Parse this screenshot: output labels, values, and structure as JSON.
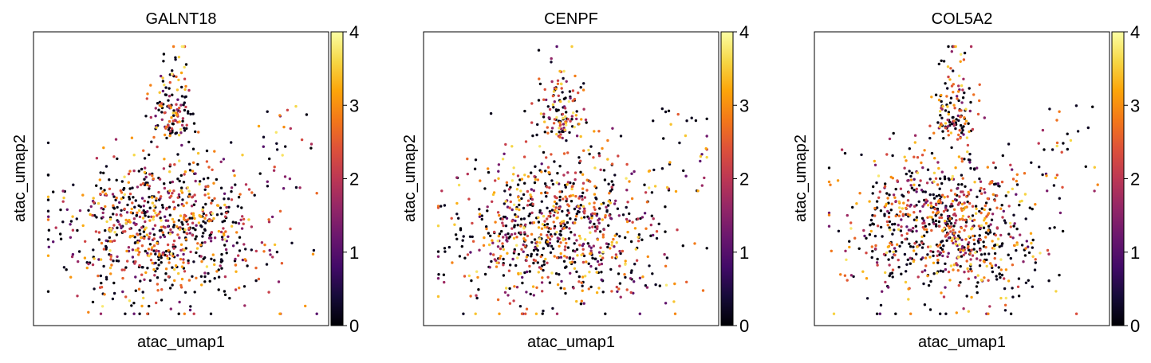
{
  "chart_data": [
    {
      "type": "scatter",
      "title": "GALNT18",
      "xlabel": "atac_umap1",
      "ylabel": "atac_umap2",
      "color_scale": "inferno",
      "colorbar_range": [
        0,
        4
      ],
      "colorbar_ticks": [
        "0",
        "1",
        "2",
        "3",
        "4"
      ],
      "point_count": 1000,
      "seed": 11
    },
    {
      "type": "scatter",
      "title": "CENPF",
      "xlabel": "atac_umap1",
      "ylabel": "atac_umap2",
      "color_scale": "inferno",
      "colorbar_range": [
        0,
        4
      ],
      "colorbar_ticks": [
        "0",
        "1",
        "2",
        "3",
        "4"
      ],
      "point_count": 1000,
      "seed": 23
    },
    {
      "type": "scatter",
      "title": "COL5A2",
      "xlabel": "atac_umap1",
      "ylabel": "atac_umap2",
      "color_scale": "inferno",
      "colorbar_range": [
        0,
        4
      ],
      "colorbar_ticks": [
        "0",
        "1",
        "2",
        "3",
        "4"
      ],
      "point_count": 1000,
      "seed": 37
    }
  ]
}
